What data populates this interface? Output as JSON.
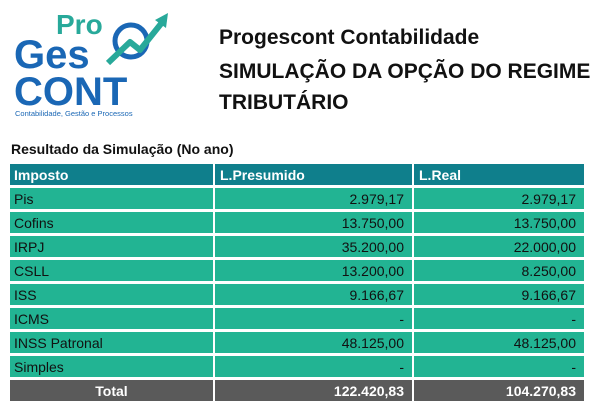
{
  "logo": {
    "text_pro": "Pro",
    "text_ges": "Ges",
    "text_cont": "CONT",
    "tagline": "Contabilidade, Gestão e Processos",
    "colors": {
      "blue": "#1a67b5",
      "teal": "#28a99a"
    }
  },
  "header": {
    "company": "Progescont Contabilidade",
    "title_line1": "SIMULAÇÃO DA OPÇÃO DO REGIME",
    "title_line2": "TRIBUTÁRIO"
  },
  "section_title": "Resultado da Simulação (No ano)",
  "table": {
    "columns": [
      "Imposto",
      "L.Presumido",
      "L.Real"
    ],
    "rows": [
      [
        "Pis",
        "2.979,17",
        "2.979,17"
      ],
      [
        "Cofins",
        "13.750,00",
        "13.750,00"
      ],
      [
        "IRPJ",
        "35.200,00",
        "22.000,00"
      ],
      [
        "CSLL",
        "13.200,00",
        "8.250,00"
      ],
      [
        "ISS",
        "9.166,67",
        "9.166,67"
      ],
      [
        "ICMS",
        "-",
        "-"
      ],
      [
        "INSS Patronal",
        "48.125,00",
        "48.125,00"
      ],
      [
        "Simples",
        "-",
        "-"
      ]
    ],
    "total": [
      "Total",
      "122.420,83",
      "104.270,83"
    ],
    "colors": {
      "header": "#0f7f8c",
      "body": "#22b493",
      "total": "#5a5a5a"
    }
  }
}
